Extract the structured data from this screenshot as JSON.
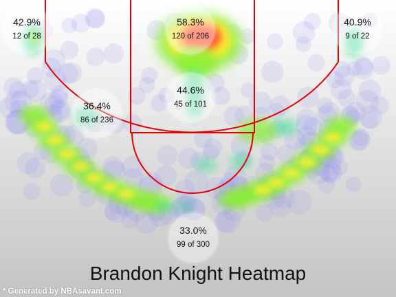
{
  "chart_data": {
    "type": "heatmap",
    "title": "Brandon Knight Heatmap",
    "credit": "* Generated by NBAsavant.com",
    "zones": [
      {
        "id": "left-corner-three",
        "pct": "42.9%",
        "ratio": "12 of 28",
        "made": 12,
        "attempts": 28
      },
      {
        "id": "restricted-area",
        "pct": "58.3%",
        "ratio": "120 of 206",
        "made": 120,
        "attempts": 206
      },
      {
        "id": "right-corner-three",
        "pct": "40.9%",
        "ratio": "9 of 22",
        "made": 9,
        "attempts": 22
      },
      {
        "id": "paint",
        "pct": "44.6%",
        "ratio": "45 of 101",
        "made": 45,
        "attempts": 101
      },
      {
        "id": "mid-range",
        "pct": "36.4%",
        "ratio": "86 of 236",
        "made": 86,
        "attempts": 236
      },
      {
        "id": "above-break-three",
        "pct": "33.0%",
        "ratio": "99 of 300",
        "made": 99,
        "attempts": 300
      }
    ],
    "colors": {
      "court_lines": "#e00000",
      "hot": "#ff3b2f",
      "warm": "#ffee33",
      "mid": "#88ee33",
      "cool": "#44dd99",
      "shot_marker": "#8c8cf0"
    }
  }
}
